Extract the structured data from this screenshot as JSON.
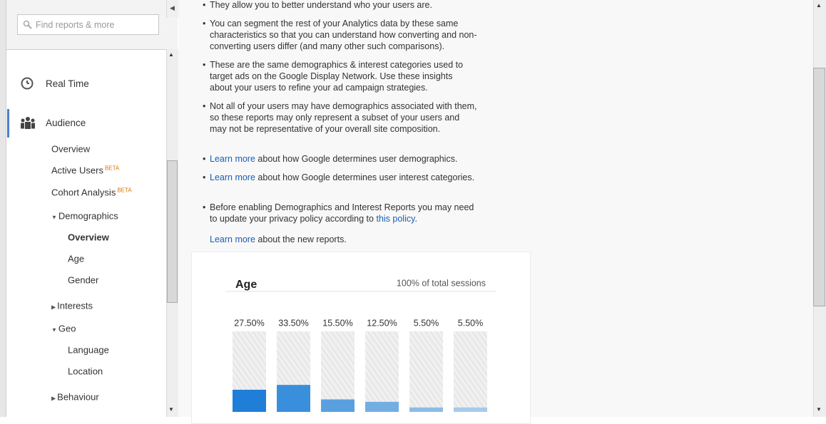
{
  "search": {
    "placeholder": "Find reports & more"
  },
  "nav": {
    "real_time": "Real Time",
    "audience": "Audience",
    "items": [
      {
        "label": "Overview"
      },
      {
        "label": "Active Users",
        "badge": "BETA"
      },
      {
        "label": "Cohort Analysis",
        "badge": "BETA"
      },
      {
        "label": "Demographics"
      },
      {
        "label": "Overview"
      },
      {
        "label": "Age"
      },
      {
        "label": "Gender"
      },
      {
        "label": "Interests"
      },
      {
        "label": "Geo"
      },
      {
        "label": "Language"
      },
      {
        "label": "Location"
      },
      {
        "label": "Behaviour"
      }
    ]
  },
  "content": {
    "bullets": [
      [
        {
          "text": "They allow you to better understand who your users are.",
          "link": false
        }
      ],
      [
        {
          "text": "You can segment the rest of your Analytics data by these same characteristics so that you can understand how converting and non-converting users differ (and many other such comparisons).",
          "link": false
        }
      ],
      [
        {
          "text": "These are the same demographics & interest categories used to target ads on the Google Display Network. Use these insights about your users to refine your ad campaign strategies.",
          "link": false
        }
      ],
      [
        {
          "text": "Not all of your users may have demographics associated with them, so these reports may only represent a subset of your users and may not be representative of your overall site composition.",
          "link": false
        }
      ],
      [
        {
          "text": "Learn more",
          "link": true
        },
        {
          "text": " about how Google determines user demographics.",
          "link": false
        }
      ],
      [
        {
          "text": "Learn more",
          "link": true
        },
        {
          "text": " about how Google determines user interest categories.",
          "link": false
        }
      ],
      [
        {
          "text": "Before enabling Demographics and Interest Reports you may need to update your privacy policy according to ",
          "link": false
        },
        {
          "text": "this policy",
          "link": true
        },
        {
          "text": ".",
          "link": false
        }
      ]
    ],
    "footer": [
      {
        "text": "Learn more",
        "link": true
      },
      {
        "text": " about the new reports.",
        "link": false
      }
    ]
  },
  "age_widget": {
    "title": "Age",
    "subtitle": "100% of total sessions",
    "values": [
      27.5,
      33.5,
      15.5,
      12.5,
      5.5,
      5.5
    ],
    "value_labels": [
      "27.50%",
      "33.50%",
      "15.50%",
      "12.50%",
      "5.50%",
      "5.50%"
    ],
    "colors": [
      "#1f7fd8",
      "#3a8fdc",
      "#5aa0e0",
      "#73aee3",
      "#8bbce7",
      "#a7cbeb"
    ],
    "ylim": [
      0,
      100
    ]
  }
}
